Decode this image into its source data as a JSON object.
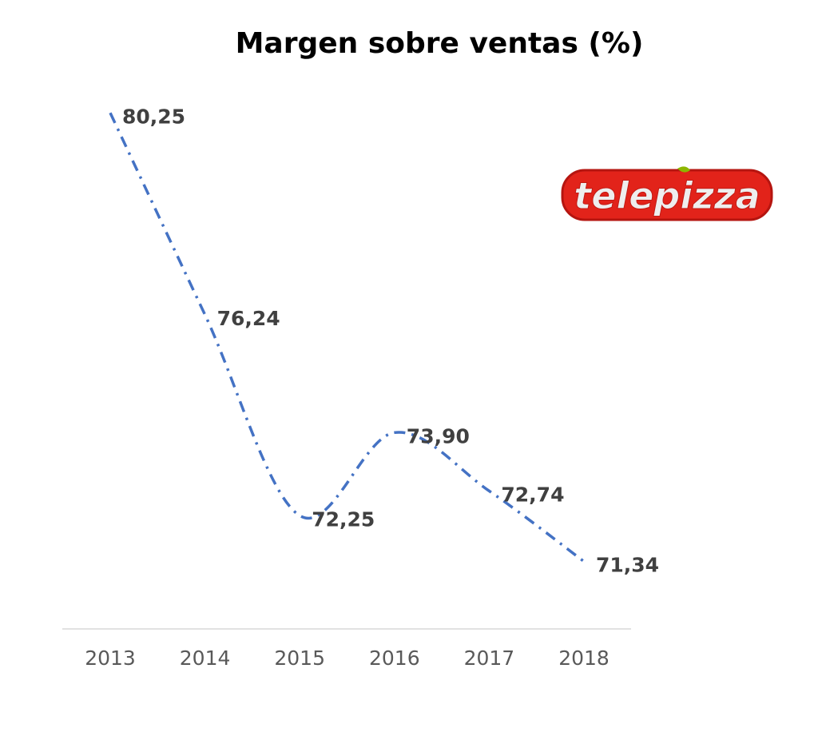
{
  "chart_data": {
    "type": "line",
    "title": "Margen sobre ventas (%)",
    "categories": [
      "2013",
      "2014",
      "2015",
      "2016",
      "2017",
      "2018"
    ],
    "values": [
      80.25,
      76.24,
      72.25,
      73.9,
      72.74,
      71.34
    ],
    "data_labels": [
      "80,25",
      "76,24",
      "72,25",
      "73,90",
      "72,74",
      "71,34"
    ],
    "xlabel": "",
    "ylabel": "",
    "ylim": [
      70,
      82
    ],
    "grid": false,
    "legend": "none",
    "line_color": "#4472C4",
    "line_style": "dash-dot",
    "smooth": true
  },
  "logo": {
    "text": "telepizza",
    "color": "#E2231A"
  }
}
